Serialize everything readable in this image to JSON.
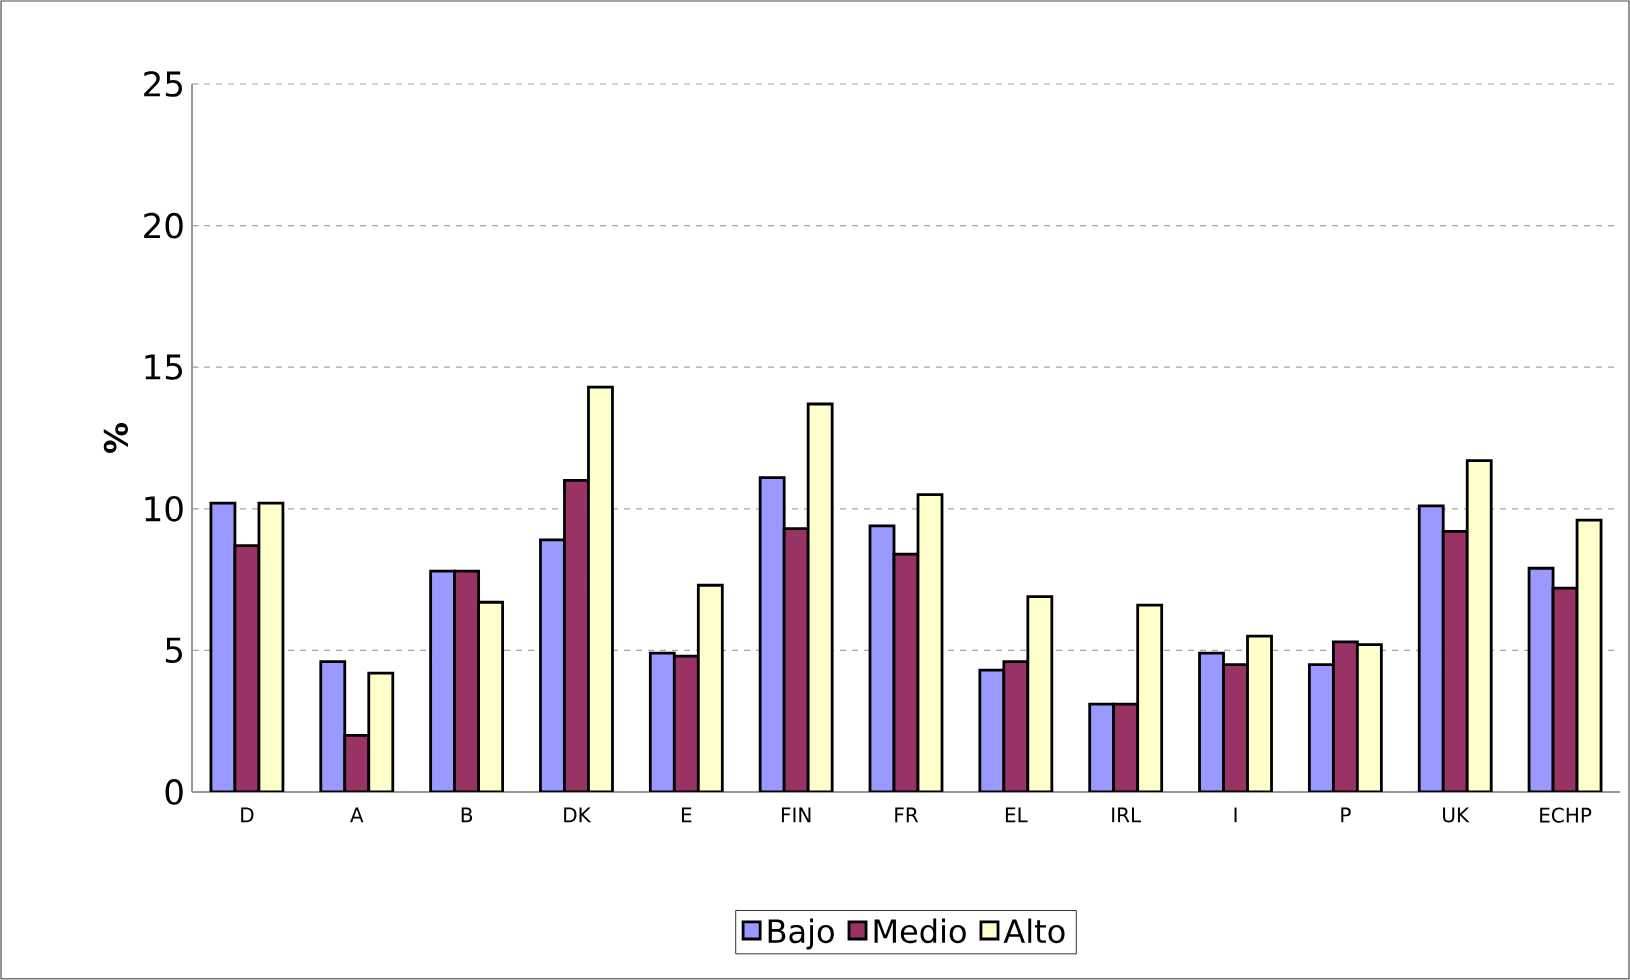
{
  "chart_data": {
    "type": "bar",
    "ylabel": "%",
    "categories": [
      "D",
      "A",
      "B",
      "DK",
      "E",
      "FIN",
      "FR",
      "EL",
      "IRL",
      "I",
      "P",
      "UK",
      "ECHP"
    ],
    "series": [
      {
        "name": "Bajo",
        "color": "#9999ff",
        "values": [
          10.2,
          4.6,
          7.8,
          8.9,
          4.9,
          11.1,
          9.4,
          4.3,
          3.1,
          4.9,
          4.5,
          10.1,
          7.9
        ]
      },
      {
        "name": "Medio",
        "color": "#993366",
        "values": [
          8.7,
          2.0,
          7.8,
          11.0,
          4.8,
          9.3,
          8.4,
          4.6,
          3.1,
          4.5,
          5.3,
          9.2,
          7.2
        ]
      },
      {
        "name": "Alto",
        "color": "#ffffcc",
        "values": [
          10.2,
          4.2,
          6.7,
          14.3,
          7.3,
          13.7,
          10.5,
          6.9,
          6.6,
          5.5,
          5.2,
          11.7,
          9.6
        ]
      }
    ],
    "ylim": [
      0,
      25
    ],
    "yticks": [
      0,
      5,
      10,
      15,
      20,
      25
    ],
    "grid": "y",
    "legend": "bottom"
  }
}
